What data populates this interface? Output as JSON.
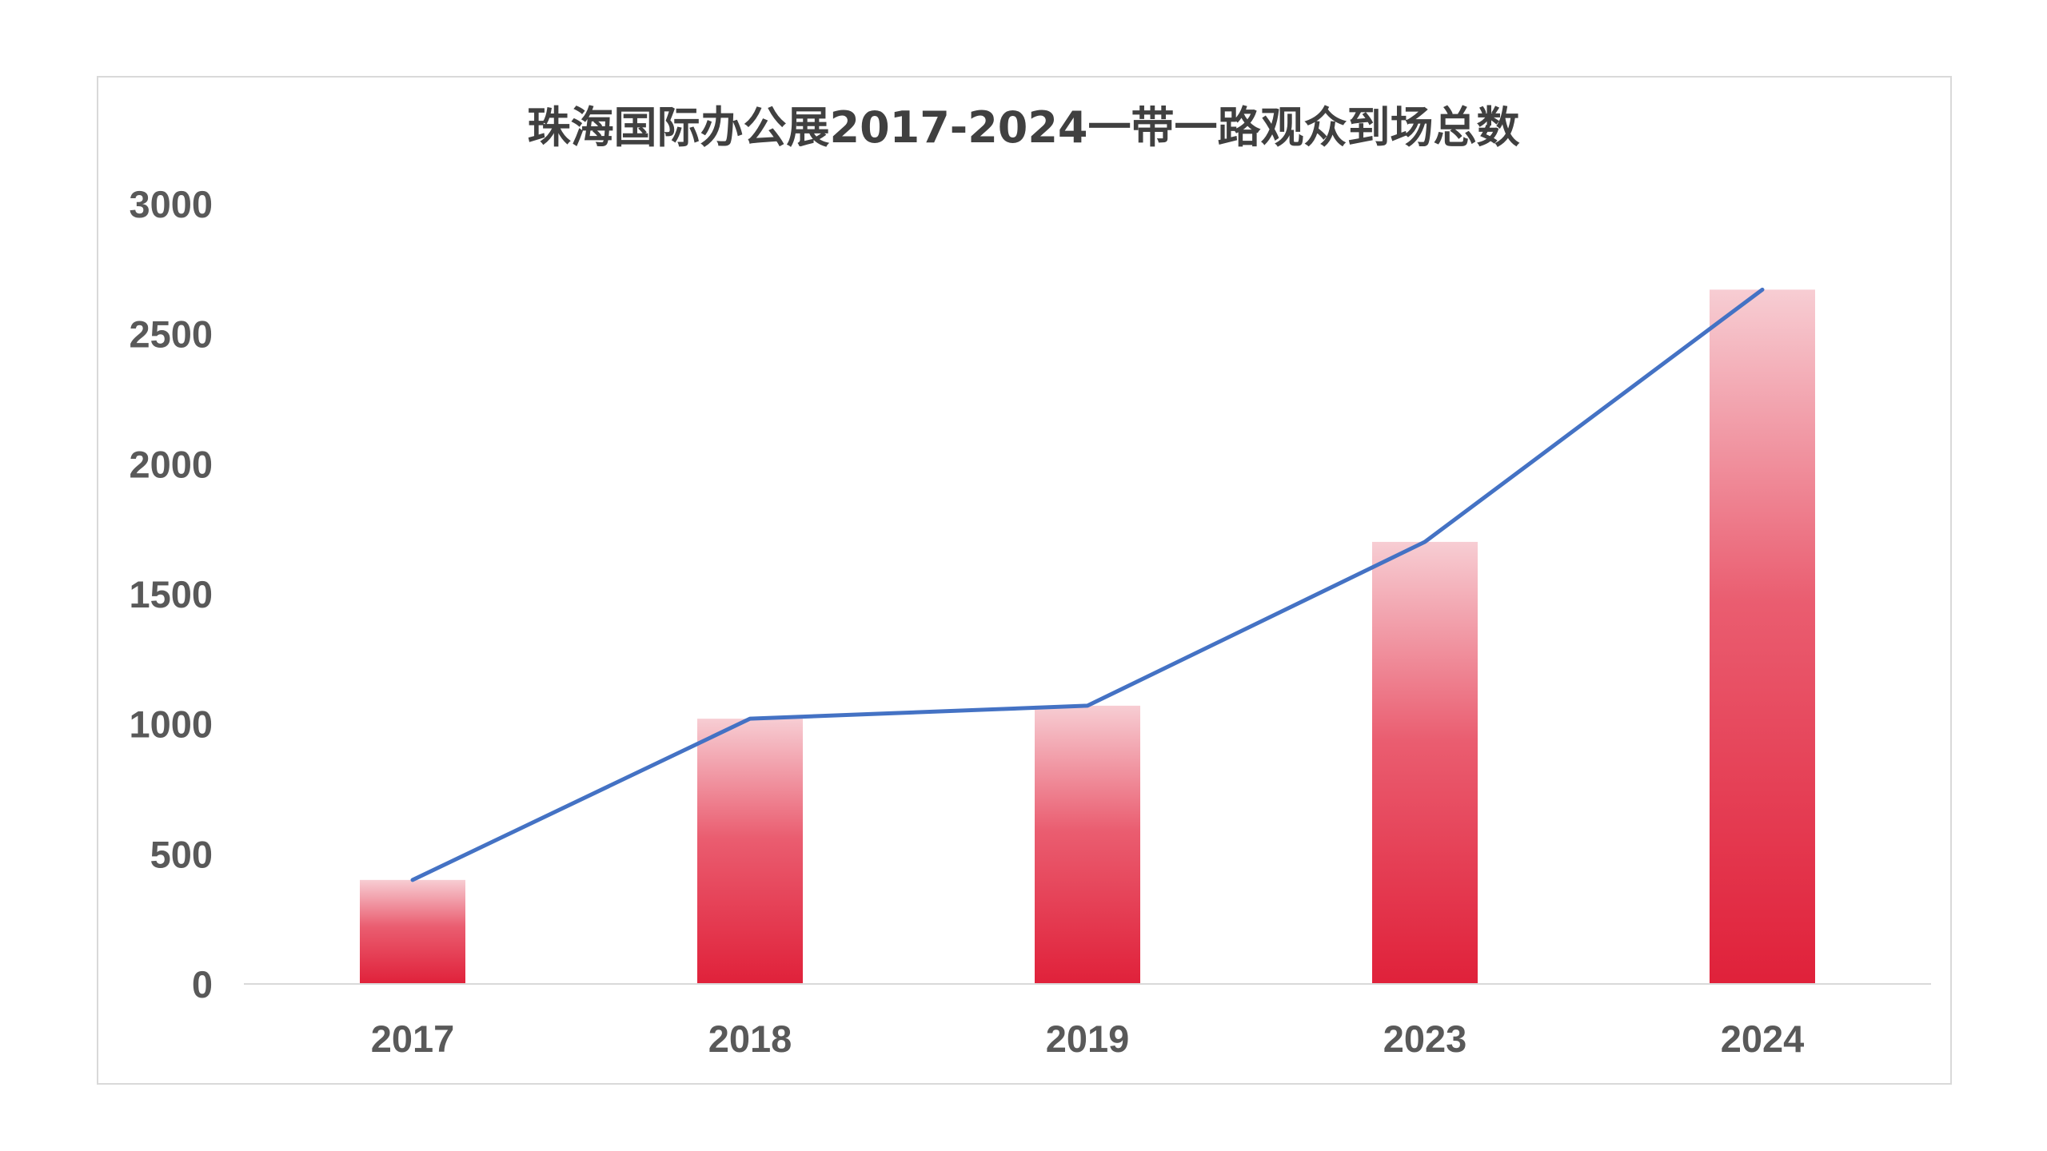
{
  "chart_data": {
    "type": "bar",
    "title": "珠海国际办公展2017-2024一带一路观众到场总数",
    "categories": [
      "2017",
      "2018",
      "2019",
      "2023",
      "2024"
    ],
    "series": [
      {
        "values": [
          400,
          1020,
          1070,
          1700,
          2670
        ]
      }
    ],
    "overlay_line": true,
    "ylim": [
      0,
      3000
    ],
    "yticks": [
      0,
      500,
      1000,
      1500,
      2000,
      2500,
      3000
    ],
    "grid": false,
    "legend": "none",
    "colors": {
      "bar_top": "#f7cdd3",
      "bar_bottom": "#e0213a",
      "line": "#4472c4",
      "axis": "#d9d9d9"
    }
  }
}
